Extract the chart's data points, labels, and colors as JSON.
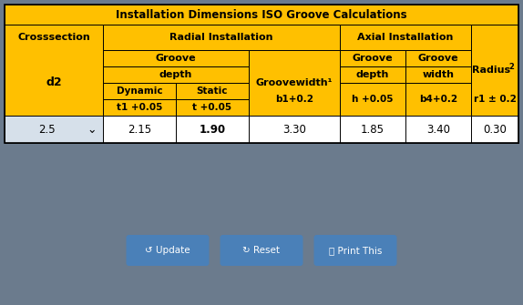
{
  "title": "Installation Dimensions ISO Groove Calculations",
  "header_bg": "#FFC000",
  "data_bg": "#D6E0EA",
  "white_bg": "#FFFFFF",
  "gray_bg": "#6B7B8D",
  "button_bg": "#4A80B8",
  "button_text_color": "#FFFFFF",
  "col1_header": "Crosssection",
  "col2_header": "Radial Installation",
  "col3_header": "Axial Installation",
  "col4_header": "Radius",
  "d2_label": "d2",
  "groove_label": "Groove",
  "groovewidth_label": "Groovewidth¹",
  "groove_depth_label": "depth",
  "groove_axial_label": "Groove",
  "groove_axial_depth": "depth",
  "groove_axial_width": "width",
  "dynamic_label": "Dynamic",
  "static_label": "Static",
  "t1_label": "t1 +0.05",
  "t_label": "t +0.05",
  "b1_label": "b1+0.2",
  "h_label": "h +0.05",
  "b4_label": "b4+0.2",
  "r1_label": "r1 ± 0.2",
  "data_row": [
    "2.5",
    "2.15",
    "1.90",
    "3.30",
    "1.85",
    "3.40",
    "0.30"
  ],
  "dropdown_symbol": "✔",
  "buttons": [
    "Update",
    "Reset",
    "Print This"
  ],
  "title_fontsize": 8.5,
  "header_fontsize": 8,
  "label_fontsize": 7.5,
  "data_fontsize": 8.5,
  "btn_fontsize": 7.5
}
